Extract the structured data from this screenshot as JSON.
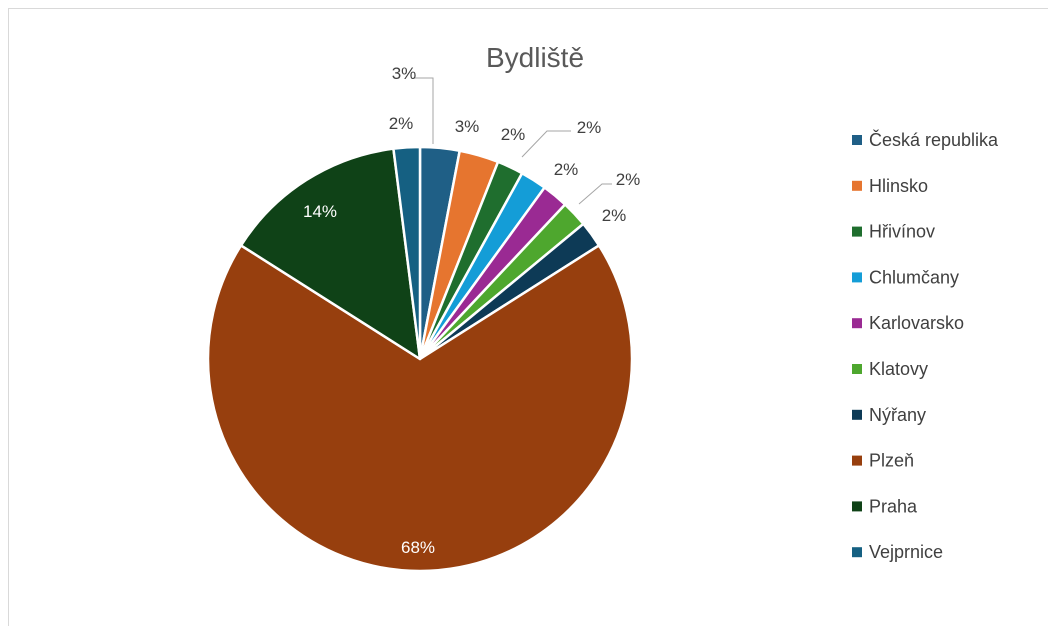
{
  "chart_data": {
    "type": "pie",
    "title": "Bydliště",
    "categories": [
      "Česká republika",
      "Hlinsko",
      "Hřivínov",
      "Chlumčany",
      "Karlovarsko",
      "Klatovy",
      "Nýřany",
      "Plzeň",
      "Praha",
      "Vejprnice"
    ],
    "values": [
      3,
      3,
      2,
      2,
      2,
      2,
      2,
      68,
      14,
      2
    ],
    "labels": [
      "3%",
      "3%",
      "2%",
      "2%",
      "2%",
      "2%",
      "2%",
      "68%",
      "14%",
      "2%"
    ],
    "colors": [
      "#1f5f86",
      "#e6752f",
      "#1f6e2e",
      "#149dd7",
      "#9a2a93",
      "#4ea72e",
      "#0d3a56",
      "#973f0e",
      "#0f4217",
      "#156082"
    ],
    "legend_position": "right"
  }
}
